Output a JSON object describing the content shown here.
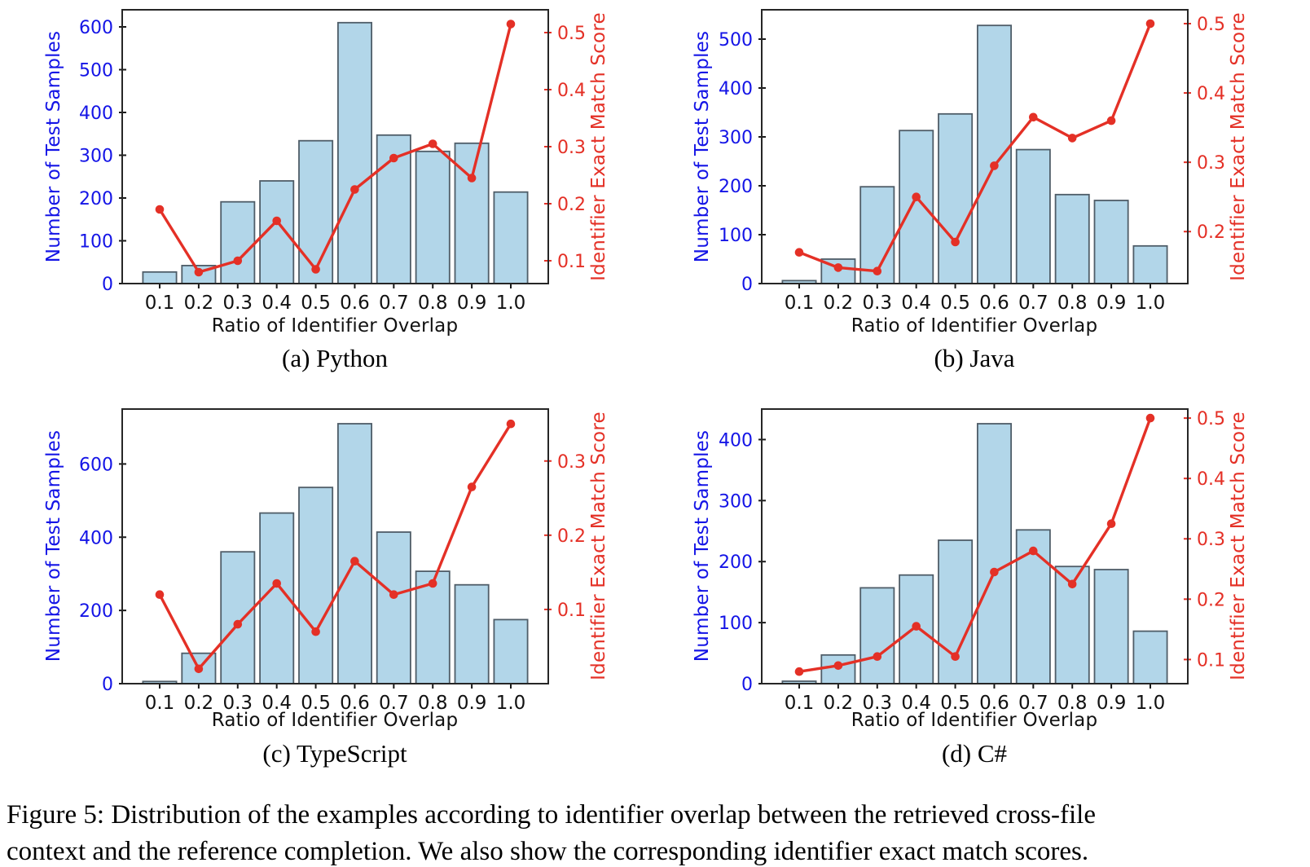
{
  "figure": {
    "caption_line1": "Figure 5: Distribution of the examples according to identifier overlap between the retrieved cross-file",
    "caption_line2": "context and the reference completion. We also show the corresponding identifier exact match scores."
  },
  "colors": {
    "bar_fill": "#b2d6e9",
    "bar_edge": "#4f5d68",
    "line_red": "#e43026",
    "axis_left_blue": "#1414e6",
    "axis_right_red": "#e43026",
    "tick_black": "#1a1a1a",
    "spine": "#262626"
  },
  "chart_data": [
    {
      "id": "python",
      "type": "bar+line",
      "caption": "(a) Python",
      "xlabel": "Ratio of Identifier Overlap",
      "ylabel_left": "Number of Test Samples",
      "ylabel_right": "Identifier Exact Match Score",
      "categories": [
        "0.1",
        "0.2",
        "0.3",
        "0.4",
        "0.5",
        "0.6",
        "0.7",
        "0.8",
        "0.9",
        "1.0"
      ],
      "series": [
        {
          "name": "Number of Test Samples",
          "type": "bar",
          "axis": "left",
          "values": [
            27,
            42,
            191,
            240,
            334,
            610,
            347,
            309,
            328,
            214
          ]
        },
        {
          "name": "Identifier Exact Match Score",
          "type": "line",
          "axis": "right",
          "values": [
            0.19,
            0.08,
            0.1,
            0.17,
            0.085,
            0.225,
            0.28,
            0.305,
            0.245,
            0.515
          ]
        }
      ],
      "ylim_left": [
        0,
        640
      ],
      "yticks_left": [
        0,
        100,
        200,
        300,
        400,
        500,
        600
      ],
      "ylim_right": [
        0.06,
        0.54
      ],
      "yticks_right": [
        0.1,
        0.2,
        0.3,
        0.4,
        0.5
      ],
      "grid": false,
      "legend": "none"
    },
    {
      "id": "java",
      "type": "bar+line",
      "caption": "(b) Java",
      "xlabel": "Ratio of Identifier Overlap",
      "ylabel_left": "Number of Test Samples",
      "ylabel_right": "Identifier Exact Match Score",
      "categories": [
        "0.1",
        "0.2",
        "0.3",
        "0.4",
        "0.5",
        "0.6",
        "0.7",
        "0.8",
        "0.9",
        "1.0"
      ],
      "series": [
        {
          "name": "Number of Test Samples",
          "type": "bar",
          "axis": "left",
          "values": [
            6,
            50,
            198,
            313,
            347,
            528,
            274,
            182,
            170,
            77
          ]
        },
        {
          "name": "Identifier Exact Match Score",
          "type": "line",
          "axis": "right",
          "values": [
            0.17,
            0.148,
            0.143,
            0.25,
            0.185,
            0.295,
            0.365,
            0.335,
            0.36,
            0.5
          ]
        }
      ],
      "ylim_left": [
        0,
        560
      ],
      "yticks_left": [
        0,
        100,
        200,
        300,
        400,
        500
      ],
      "ylim_right": [
        0.125,
        0.52
      ],
      "yticks_right": [
        0.2,
        0.3,
        0.4,
        0.5
      ],
      "grid": false,
      "legend": "none"
    },
    {
      "id": "typescript",
      "type": "bar+line",
      "caption": "(c) TypeScript",
      "xlabel": "Ratio of Identifier Overlap",
      "ylabel_left": "Number of Test Samples",
      "ylabel_right": "Identifier Exact Match Score",
      "categories": [
        "0.1",
        "0.2",
        "0.3",
        "0.4",
        "0.5",
        "0.6",
        "0.7",
        "0.8",
        "0.9",
        "1.0"
      ],
      "series": [
        {
          "name": "Number of Test Samples",
          "type": "bar",
          "axis": "left",
          "values": [
            6,
            83,
            360,
            466,
            536,
            710,
            414,
            307,
            270,
            175
          ]
        },
        {
          "name": "Identifier Exact Match Score",
          "type": "line",
          "axis": "right",
          "values": [
            0.12,
            0.02,
            0.08,
            0.135,
            0.07,
            0.165,
            0.12,
            0.135,
            0.265,
            0.35
          ]
        }
      ],
      "ylim_left": [
        0,
        750
      ],
      "yticks_left": [
        0,
        200,
        400,
        600
      ],
      "ylim_right": [
        0.0,
        0.37
      ],
      "yticks_right": [
        0.1,
        0.2,
        0.3
      ],
      "grid": false,
      "legend": "none"
    },
    {
      "id": "csharp",
      "type": "bar+line",
      "caption": "(d) C#",
      "xlabel": "Ratio of Identifier Overlap",
      "ylabel_left": "Number of Test Samples",
      "ylabel_right": "Identifier Exact Match Score",
      "categories": [
        "0.1",
        "0.2",
        "0.3",
        "0.4",
        "0.5",
        "0.6",
        "0.7",
        "0.8",
        "0.9",
        "1.0"
      ],
      "series": [
        {
          "name": "Number of Test Samples",
          "type": "bar",
          "axis": "left",
          "values": [
            4,
            47,
            157,
            178,
            235,
            426,
            252,
            192,
            187,
            86
          ]
        },
        {
          "name": "Identifier Exact Match Score",
          "type": "line",
          "axis": "right",
          "values": [
            0.08,
            0.09,
            0.105,
            0.155,
            0.105,
            0.245,
            0.28,
            0.225,
            0.325,
            0.5
          ]
        }
      ],
      "ylim_left": [
        0,
        450
      ],
      "yticks_left": [
        0,
        100,
        200,
        300,
        400
      ],
      "ylim_right": [
        0.06,
        0.515
      ],
      "yticks_right": [
        0.1,
        0.2,
        0.3,
        0.4,
        0.5
      ],
      "grid": false,
      "legend": "none"
    }
  ]
}
